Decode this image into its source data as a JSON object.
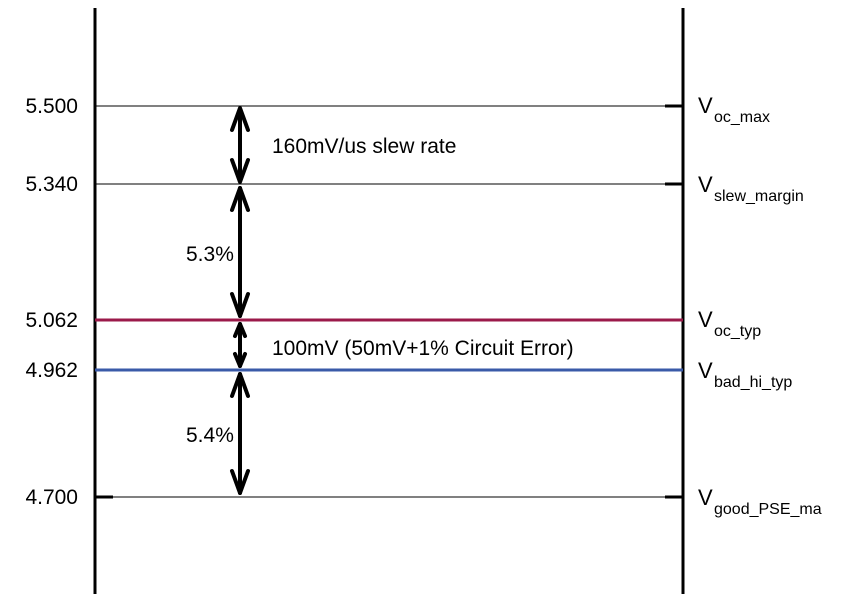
{
  "levels": [
    {
      "id": "voc-max",
      "value": "5.500",
      "symbol": "V",
      "subscript": "oc_max",
      "color": "#000000",
      "highlight": false
    },
    {
      "id": "vslew-margin",
      "value": "5.340",
      "symbol": "V",
      "subscript": "slew_margin",
      "color": "#000000",
      "highlight": false
    },
    {
      "id": "voc-typ",
      "value": "5.062",
      "symbol": "V",
      "subscript": "oc_typ",
      "color": "#9b1a4a",
      "highlight": true
    },
    {
      "id": "vbad-hi-typ",
      "value": "4.962",
      "symbol": "V",
      "subscript": "bad_hi_typ",
      "color": "#3a5aa8",
      "highlight": true
    },
    {
      "id": "vgood-pse",
      "value": "4.700",
      "symbol": "V",
      "subscript": "good_PSE_ma",
      "color": "#000000",
      "highlight": false
    }
  ],
  "annotations": {
    "slew": "160mV/us slew rate",
    "pct_upper": "5.3%",
    "circuit_error": "100mV (50mV+1% Circuit Error)",
    "pct_lower": "5.4%"
  }
}
